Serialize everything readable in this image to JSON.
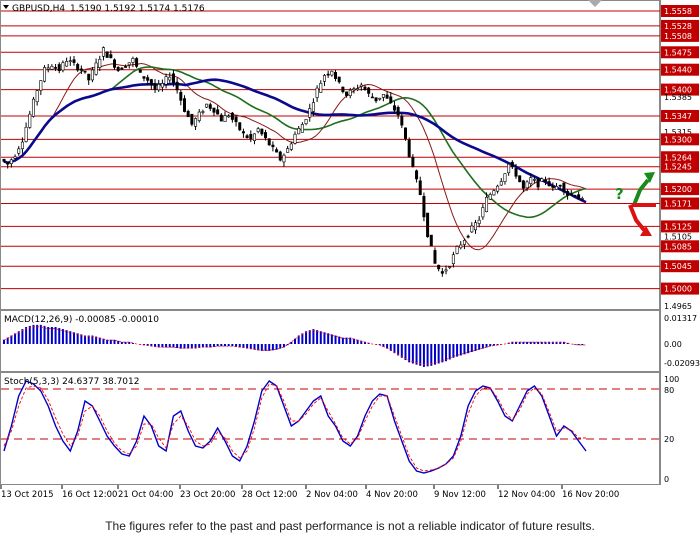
{
  "header": {
    "symbol": "GBPUSD,H4",
    "ohlc": "1.5190 1.5192 1.5174 1.5176"
  },
  "macd": {
    "label": "MACD(12,26,9) -0.00085 -0.00010",
    "axis_top": "0.01317",
    "axis_zero": "0.00",
    "axis_bottom": "-0.02093"
  },
  "stoch": {
    "label": "Stoch(5,3,3) 24.6377 38.7012",
    "axis_top": "100",
    "axis_80": "80",
    "axis_20": "20",
    "axis_0": "0"
  },
  "price_levels": [
    {
      "label": "1.5558",
      "value": 1.5558,
      "red": true
    },
    {
      "label": "1.5528",
      "value": 1.5528,
      "red": true
    },
    {
      "label": "1.5508",
      "value": 1.5508,
      "red": true
    },
    {
      "label": "1.5475",
      "value": 1.5475,
      "red": true
    },
    {
      "label": "1.5440",
      "value": 1.544,
      "red": true
    },
    {
      "label": "1.5400",
      "value": 1.54,
      "red": true
    },
    {
      "label": "1.5385",
      "value": 1.5385,
      "red": false
    },
    {
      "label": "1.5347",
      "value": 1.5347,
      "red": true
    },
    {
      "label": "1.5315",
      "value": 1.5315,
      "red": false
    },
    {
      "label": "1.5300",
      "value": 1.53,
      "red": true
    },
    {
      "label": "1.5264",
      "value": 1.5264,
      "red": true
    },
    {
      "label": "1.5245",
      "value": 1.5245,
      "red": true
    },
    {
      "label": "1.5200",
      "value": 1.52,
      "red": true
    },
    {
      "label": "1.5171",
      "value": 1.5171,
      "red": true
    },
    {
      "label": "1.5125",
      "value": 1.5125,
      "red": true
    },
    {
      "label": "1.5105",
      "value": 1.5105,
      "red": false
    },
    {
      "label": "1.5085",
      "value": 1.5085,
      "red": true
    },
    {
      "label": "1.5045",
      "value": 1.5045,
      "red": true
    },
    {
      "label": "1.5000",
      "value": 1.5,
      "red": true
    },
    {
      "label": "1.4965",
      "value": 1.4965,
      "red": false
    }
  ],
  "time_labels": [
    "13 Oct 2015",
    "16 Oct 12:00",
    "21 Oct 04:00",
    "23 Oct 20:00",
    "28 Oct 12:00",
    "2 Nov 04:00",
    "4 Nov 20:00",
    "9 Nov 12:00",
    "12 Nov 04:00",
    "16 Nov 20:00"
  ],
  "scenario": {
    "question_mark": "?"
  },
  "colors": {
    "level_line": "#c00000",
    "ma_fast": "#8b1a1a",
    "ma_mid": "#1e6e1e",
    "ma_slow": "#0a0a8c",
    "macd_hist": "#0000c8",
    "stoch_main": "#0000c8",
    "stoch_signal": "#ff0000",
    "arrow_up": "#1a8a1a",
    "arrow_down": "#dd1111"
  },
  "chart_data": {
    "type": "candlestick",
    "close_path": [
      1.526,
      1.525,
      1.527,
      1.53,
      1.535,
      1.54,
      1.544,
      1.545,
      1.544,
      1.546,
      1.545,
      1.544,
      1.542,
      1.545,
      1.548,
      1.546,
      1.544,
      1.545,
      1.546,
      1.543,
      1.542,
      1.54,
      1.541,
      1.543,
      1.54,
      1.536,
      1.533,
      1.535,
      1.537,
      1.536,
      1.534,
      1.535,
      1.533,
      1.531,
      1.53,
      1.532,
      1.53,
      1.528,
      1.526,
      1.528,
      1.531,
      1.533,
      1.536,
      1.54,
      1.543,
      1.544,
      1.541,
      1.539,
      1.54,
      1.541,
      1.539,
      1.538,
      1.539,
      1.537,
      1.535,
      1.53,
      1.524,
      1.519,
      1.511,
      1.505,
      1.503,
      1.505,
      1.508,
      1.51,
      1.512,
      1.514,
      1.518,
      1.52,
      1.522,
      1.525,
      1.523,
      1.52,
      1.522,
      1.521,
      1.522,
      1.52,
      1.521,
      1.519,
      1.519,
      1.5176
    ],
    "macd_hist": [
      0.002,
      0.004,
      0.006,
      0.008,
      0.009,
      0.009,
      0.008,
      0.008,
      0.007,
      0.006,
      0.005,
      0.004,
      0.004,
      0.003,
      0.002,
      0.002,
      0.001,
      0.001,
      0.0,
      -0.001,
      -0.002,
      -0.003,
      -0.003,
      -0.003,
      -0.004,
      -0.004,
      -0.004,
      -0.003,
      -0.003,
      -0.002,
      -0.002,
      -0.002,
      -0.003,
      -0.004,
      -0.005,
      -0.006,
      -0.006,
      -0.005,
      -0.003,
      0.001,
      0.004,
      0.006,
      0.007,
      0.006,
      0.005,
      0.004,
      0.003,
      0.003,
      0.002,
      0.001,
      0.0,
      -0.001,
      -0.004,
      -0.008,
      -0.012,
      -0.016,
      -0.018,
      -0.02,
      -0.019,
      -0.017,
      -0.015,
      -0.012,
      -0.01,
      -0.008,
      -0.006,
      -0.004,
      -0.002,
      -0.001,
      0.0,
      0.001,
      0.001,
      0.001,
      0.001,
      0.001,
      0.001,
      0.001,
      0.001,
      0.0,
      -0.001,
      -0.001
    ],
    "stoch_k": [
      25,
      50,
      80,
      95,
      92,
      85,
      70,
      50,
      35,
      25,
      45,
      75,
      70,
      55,
      40,
      30,
      22,
      20,
      35,
      60,
      50,
      30,
      25,
      60,
      65,
      45,
      30,
      28,
      35,
      48,
      35,
      20,
      15,
      30,
      55,
      85,
      95,
      90,
      70,
      50,
      55,
      65,
      75,
      80,
      60,
      50,
      35,
      30,
      40,
      60,
      75,
      82,
      80,
      55,
      35,
      15,
      5,
      3,
      5,
      8,
      12,
      20,
      40,
      70,
      85,
      90,
      88,
      75,
      60,
      55,
      70,
      85,
      90,
      80,
      60,
      40,
      50,
      45,
      35,
      25
    ],
    "stoch_d": [
      30,
      45,
      70,
      88,
      90,
      88,
      76,
      58,
      42,
      30,
      40,
      65,
      70,
      60,
      45,
      33,
      25,
      22,
      30,
      52,
      52,
      38,
      28,
      52,
      60,
      50,
      35,
      30,
      32,
      44,
      38,
      25,
      18,
      25,
      48,
      78,
      92,
      90,
      75,
      55,
      55,
      62,
      72,
      78,
      65,
      52,
      38,
      32,
      38,
      55,
      70,
      80,
      80,
      60,
      40,
      20,
      8,
      5,
      6,
      8,
      12,
      18,
      35,
      62,
      80,
      88,
      88,
      78,
      64,
      56,
      66,
      82,
      88,
      82,
      64,
      45,
      48,
      46,
      38,
      38
    ]
  }
}
